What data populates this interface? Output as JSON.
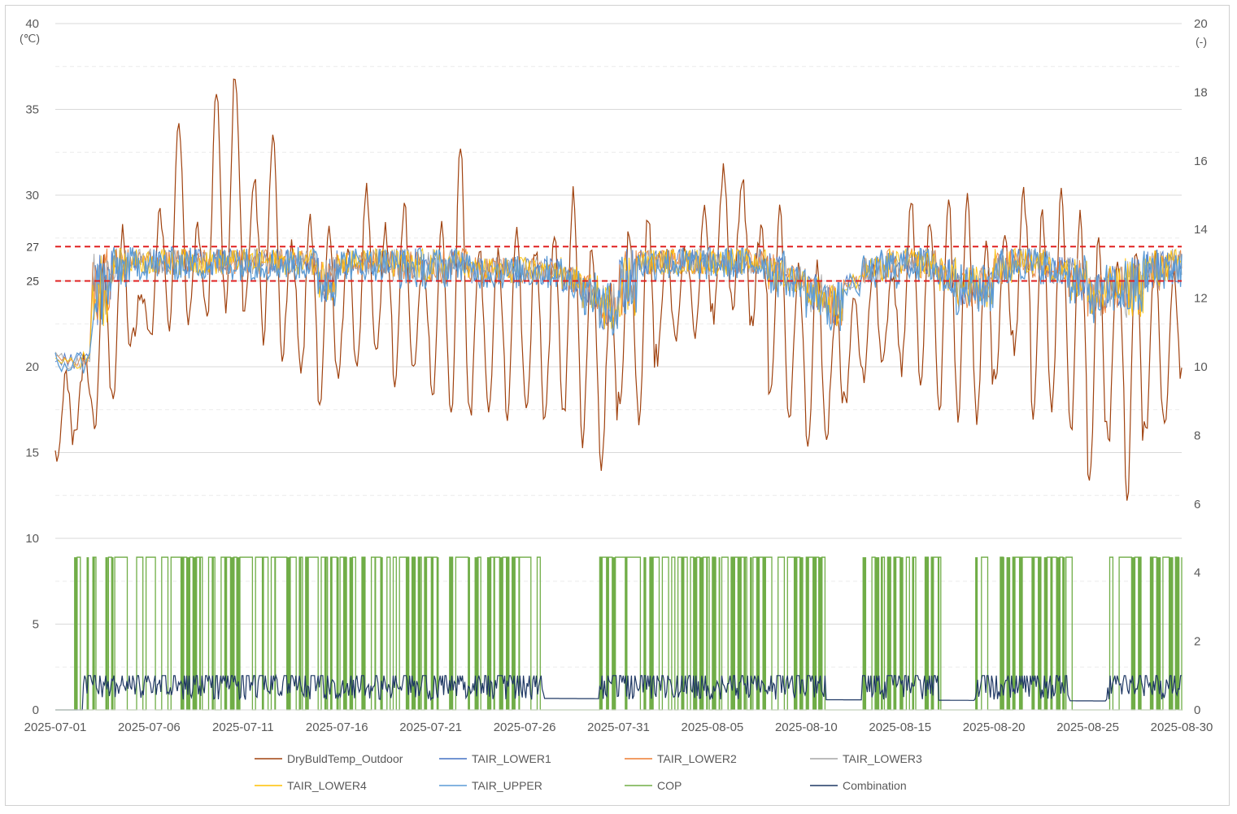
{
  "chart_data": {
    "type": "line",
    "x_ticks": [
      "2025-07-01",
      "2025-07-06",
      "2025-07-11",
      "2025-07-16",
      "2025-07-21",
      "2025-07-26",
      "2025-07-31",
      "2025-08-05",
      "2025-08-10",
      "2025-08-15",
      "2025-08-20",
      "2025-08-25",
      "2025-08-30"
    ],
    "x_range": [
      "2025-07-01",
      "2025-08-30"
    ],
    "y_left": {
      "unit": "(℃)",
      "ticks": [
        "0",
        "5",
        "10",
        "15",
        "20",
        "25",
        "27",
        "30",
        "35",
        "40"
      ],
      "range": [
        0,
        40
      ]
    },
    "y_right": {
      "unit": "(-)",
      "ticks": [
        "0",
        "2",
        "4",
        "6",
        "8",
        "10",
        "12",
        "14",
        "16",
        "18",
        "20"
      ],
      "range": [
        0,
        20
      ]
    },
    "reference_lines": [
      {
        "value": 27,
        "label": "27",
        "color": "#e02020",
        "style": "dashed"
      },
      {
        "value": 25,
        "label": "25",
        "color": "#e02020",
        "style": "dashed"
      }
    ],
    "grid": true,
    "legend_position": "bottom",
    "series": [
      {
        "name": "DryBuldTemp_Outdoor",
        "color": "#a0420f",
        "axis": "left",
        "x": [
          "2025-07-01",
          "2025-07-02",
          "2025-07-03",
          "2025-07-04",
          "2025-07-05",
          "2025-07-06",
          "2025-07-07",
          "2025-07-08",
          "2025-07-09",
          "2025-07-10",
          "2025-07-11",
          "2025-07-12",
          "2025-07-13",
          "2025-07-14",
          "2025-07-15",
          "2025-07-16",
          "2025-07-17",
          "2025-07-18",
          "2025-07-19",
          "2025-07-20",
          "2025-07-21",
          "2025-07-22",
          "2025-07-23",
          "2025-07-24",
          "2025-07-25",
          "2025-07-26",
          "2025-07-27",
          "2025-07-28",
          "2025-07-29",
          "2025-07-30",
          "2025-07-31",
          "2025-08-01",
          "2025-08-02",
          "2025-08-03",
          "2025-08-04",
          "2025-08-05",
          "2025-08-06",
          "2025-08-07",
          "2025-08-08",
          "2025-08-09",
          "2025-08-10",
          "2025-08-11",
          "2025-08-12",
          "2025-08-13",
          "2025-08-14",
          "2025-08-15",
          "2025-08-16",
          "2025-08-17",
          "2025-08-18",
          "2025-08-19",
          "2025-08-20",
          "2025-08-21",
          "2025-08-22",
          "2025-08-23",
          "2025-08-24",
          "2025-08-25",
          "2025-08-26",
          "2025-08-27",
          "2025-08-28",
          "2025-08-29",
          "2025-08-30"
        ],
        "min": [
          14.5,
          16.5,
          16.2,
          18.5,
          21.5,
          21.8,
          22.5,
          22.6,
          22.8,
          23.5,
          23.2,
          21.8,
          20.8,
          19.5,
          17.2,
          19.8,
          20.2,
          20.5,
          18.5,
          19.5,
          18.2,
          16.8,
          17.0,
          17.8,
          17.2,
          17.2,
          16.8,
          17.0,
          15.5,
          14.5,
          17.5,
          17.0,
          20.5,
          22.0,
          21.5,
          23.0,
          23.2,
          22.5,
          18.0,
          16.5,
          15.0,
          16.0,
          18.0,
          19.5,
          20.5,
          20.0,
          18.5,
          17.5,
          17.2,
          17.0,
          19.5,
          21.0,
          17.0,
          17.5,
          16.0,
          12.8,
          15.5,
          12.2,
          16.0,
          16.5,
          19.0
        ],
        "max": [
          19.5,
          20.5,
          26.0,
          28.0,
          24.5,
          29.0,
          34.0,
          28.0,
          36.0,
          37.2,
          31.0,
          33.2,
          27.0,
          28.5,
          28.5,
          27.0,
          30.5,
          28.0,
          29.5,
          26.0,
          28.0,
          32.8,
          27.0,
          26.5,
          28.0,
          27.0,
          27.5,
          30.0,
          27.0,
          24.5,
          28.0,
          29.0,
          27.0,
          27.0,
          29.0,
          31.5,
          31.0,
          28.0,
          29.0,
          26.0,
          26.0,
          23.5,
          24.0,
          26.0,
          25.0,
          29.5,
          28.5,
          29.5,
          30.0,
          27.0,
          28.0,
          30.0,
          29.0,
          30.0,
          29.0,
          27.5,
          26.5,
          27.0,
          26.5,
          25.5,
          30.0
        ]
      },
      {
        "name": "TAIR_LOWER1",
        "color": "#4472c4",
        "axis": "left"
      },
      {
        "name": "TAIR_LOWER2",
        "color": "#ed7d31",
        "axis": "left"
      },
      {
        "name": "TAIR_LOWER3",
        "color": "#a5a5a5",
        "axis": "left"
      },
      {
        "name": "TAIR_LOWER4",
        "color": "#ffc000",
        "axis": "left"
      },
      {
        "name": "TAIR_UPPER",
        "color": "#5b9bd5",
        "axis": "left",
        "x": [
          "2025-07-01",
          "2025-07-02",
          "2025-07-03",
          "2025-07-04",
          "2025-07-05",
          "2025-07-06",
          "2025-07-07",
          "2025-07-08",
          "2025-07-09",
          "2025-07-10",
          "2025-07-11",
          "2025-07-12",
          "2025-07-13",
          "2025-07-14",
          "2025-07-15",
          "2025-07-16",
          "2025-07-17",
          "2025-07-18",
          "2025-07-19",
          "2025-07-20",
          "2025-07-21",
          "2025-07-22",
          "2025-07-23",
          "2025-07-24",
          "2025-07-25",
          "2025-07-26",
          "2025-07-27",
          "2025-07-28",
          "2025-07-29",
          "2025-07-30",
          "2025-07-31",
          "2025-08-01",
          "2025-08-02",
          "2025-08-03",
          "2025-08-04",
          "2025-08-05",
          "2025-08-06",
          "2025-08-07",
          "2025-08-08",
          "2025-08-09",
          "2025-08-10",
          "2025-08-11",
          "2025-08-12",
          "2025-08-13",
          "2025-08-14",
          "2025-08-15",
          "2025-08-16",
          "2025-08-17",
          "2025-08-18",
          "2025-08-19",
          "2025-08-20",
          "2025-08-21",
          "2025-08-22",
          "2025-08-23",
          "2025-08-24",
          "2025-08-25",
          "2025-08-26",
          "2025-08-27",
          "2025-08-28",
          "2025-08-29",
          "2025-08-30"
        ],
        "min": [
          19.5,
          19.5,
          22.0,
          24.5,
          25.0,
          25.0,
          25.0,
          25.0,
          25.0,
          25.0,
          25.0,
          25.0,
          25.0,
          25.0,
          23.5,
          25.0,
          25.0,
          25.0,
          24.5,
          24.5,
          24.5,
          25.0,
          24.5,
          24.5,
          24.5,
          24.5,
          24.5,
          24.0,
          23.0,
          21.8,
          22.5,
          25.0,
          25.0,
          25.0,
          25.0,
          25.0,
          25.0,
          25.0,
          24.0,
          24.0,
          22.8,
          22.0,
          24.0,
          24.5,
          24.5,
          25.0,
          24.8,
          24.0,
          23.0,
          23.0,
          24.5,
          25.0,
          24.8,
          24.5,
          23.5,
          22.5,
          23.0,
          22.5,
          24.0,
          24.5,
          25.0
        ],
        "max": [
          21.0,
          21.0,
          27.0,
          27.0,
          27.0,
          27.0,
          27.0,
          27.0,
          27.0,
          27.0,
          27.0,
          27.0,
          27.0,
          27.0,
          26.5,
          27.0,
          27.0,
          27.0,
          27.0,
          27.0,
          27.0,
          27.0,
          26.5,
          26.5,
          26.5,
          26.5,
          26.5,
          26.0,
          25.5,
          25.0,
          27.0,
          27.0,
          27.0,
          27.0,
          27.0,
          27.0,
          27.0,
          27.0,
          26.8,
          26.0,
          25.5,
          25.0,
          25.5,
          26.5,
          27.0,
          27.0,
          27.0,
          26.5,
          26.0,
          26.0,
          27.0,
          27.0,
          27.0,
          26.5,
          26.5,
          25.5,
          26.0,
          26.5,
          27.0,
          27.0,
          27.0
        ]
      },
      {
        "name": "COP",
        "color": "#70ad47",
        "axis": "right",
        "on_value": 4.45,
        "off_value": 0,
        "active_periods": [
          [
            "2025-07-02",
            "2025-07-04"
          ],
          [
            "2025-07-04",
            "2025-07-19"
          ],
          [
            "2025-07-19",
            "2025-07-27"
          ],
          [
            "2025-07-30",
            "2025-08-11"
          ],
          [
            "2025-08-13",
            "2025-08-17"
          ],
          [
            "2025-08-19",
            "2025-08-24"
          ],
          [
            "2025-08-26",
            "2025-08-30"
          ]
        ]
      },
      {
        "name": "Combination",
        "color": "#1f3864",
        "axis": "left",
        "on_value": 2,
        "idle_value": 0.8,
        "active_periods": [
          [
            "2025-07-02",
            "2025-07-04"
          ],
          [
            "2025-07-04",
            "2025-07-19"
          ],
          [
            "2025-07-19",
            "2025-07-27"
          ],
          [
            "2025-07-30",
            "2025-08-11"
          ],
          [
            "2025-08-13",
            "2025-08-17"
          ],
          [
            "2025-08-19",
            "2025-08-24"
          ],
          [
            "2025-08-26",
            "2025-08-30"
          ]
        ]
      }
    ]
  }
}
